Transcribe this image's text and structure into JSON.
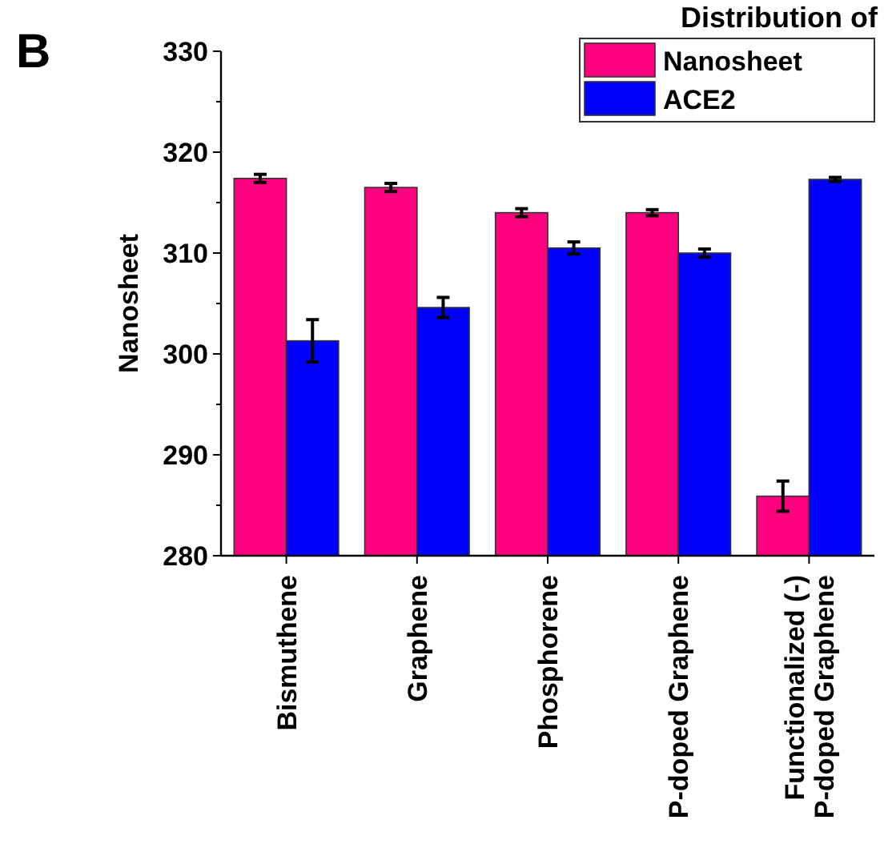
{
  "chart_data": {
    "type": "bar",
    "title": "Distribution of",
    "ylabel": "Nanosheet",
    "annotations": [
      "B"
    ],
    "categories": [
      "Bismuthene",
      "Graphene",
      "Phosphorene",
      "P-doped Graphene",
      "Functionalized (-)\nP-doped Graphene"
    ],
    "series": [
      {
        "name": "Nanosheet",
        "color": "#ff007f",
        "values": [
          317.4,
          316.5,
          314.0,
          314.0,
          285.9
        ],
        "errors": [
          0.4,
          0.4,
          0.4,
          0.3,
          1.5
        ]
      },
      {
        "name": "ACE2",
        "color": "#0000ff",
        "values": [
          301.3,
          304.6,
          310.5,
          310.0,
          317.3
        ],
        "errors": [
          2.1,
          1.0,
          0.6,
          0.4,
          0.2
        ]
      }
    ],
    "ylim": [
      280,
      330
    ],
    "yticks": [
      280,
      290,
      300,
      310,
      320,
      330
    ],
    "legend": "top right",
    "grid": false
  }
}
